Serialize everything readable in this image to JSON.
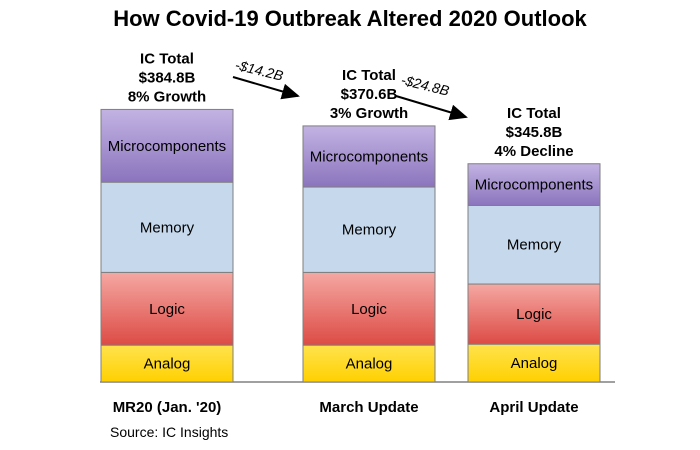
{
  "chart_data": {
    "type": "bar",
    "stacked": true,
    "title": "How Covid-19 Outbreak Altered 2020 Outlook",
    "categories": [
      "MR20 (Jan. '20)",
      "March Update",
      "April Update"
    ],
    "series": [
      {
        "name": "Analog",
        "color": "#FFD700",
        "values": [
          38,
          38,
          39
        ]
      },
      {
        "name": "Logic",
        "color": "#E8645F",
        "values": [
          75,
          75,
          62
        ]
      },
      {
        "name": "Memory",
        "color": "#C5D8EC",
        "values": [
          93,
          88,
          81
        ]
      },
      {
        "name": "Microcomponents",
        "color": "#9B87C6",
        "values": [
          75,
          63,
          43
        ]
      }
    ],
    "totals": [
      {
        "lines": [
          "IC Total",
          "$384.8B",
          "8% Growth"
        ]
      },
      {
        "lines": [
          "IC Total",
          "$370.6B",
          "3% Growth"
        ]
      },
      {
        "lines": [
          "IC Total",
          "$345.8B",
          "4% Decline"
        ]
      }
    ],
    "deltas": [
      "-$14.2B",
      "-$24.8B"
    ],
    "ylim": [
      0,
      300
    ],
    "xlabel": "",
    "ylabel": ""
  },
  "source": "Source: IC Insights"
}
